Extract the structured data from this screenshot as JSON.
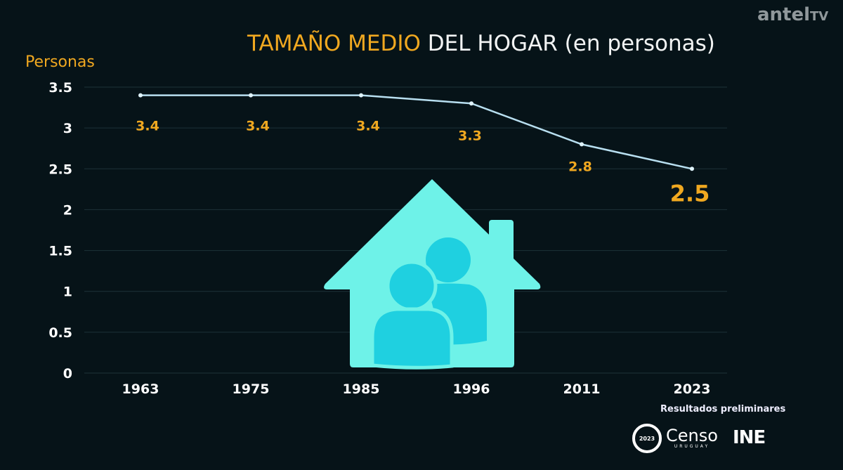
{
  "title": {
    "highlight": "TAMAÑO MEDIO",
    "rest": "DEL HOGAR (en personas)"
  },
  "watermark": {
    "brand": "antel",
    "suffix": "TV"
  },
  "footer": {
    "note": "Resultados preliminares",
    "censo": "Censo",
    "censo_sub": "URUGUAY",
    "censo_year": "2023",
    "ine": "INE"
  },
  "colors": {
    "accent": "#f0a820",
    "line": "#b8dff0",
    "grid": "#1d3338",
    "icon": "#6ef2e8",
    "people": "#1fd0e0"
  },
  "chart_data": {
    "type": "line",
    "title": "TAMAÑO MEDIO DEL HOGAR (en personas)",
    "ylabel": "Personas",
    "xlabel": "",
    "categories": [
      "1963",
      "1975",
      "1985",
      "1996",
      "2011",
      "2023"
    ],
    "values": [
      3.4,
      3.4,
      3.4,
      3.3,
      2.8,
      2.5
    ],
    "data_labels": [
      "3.4",
      "3.4",
      "3.4",
      "3.3",
      "2.8",
      "2.5"
    ],
    "ylim": [
      0,
      3.5
    ],
    "yticks": [
      "0",
      "0.5",
      "1",
      "1.5",
      "2",
      "2.5",
      "3",
      "3.5"
    ],
    "grid": true
  }
}
